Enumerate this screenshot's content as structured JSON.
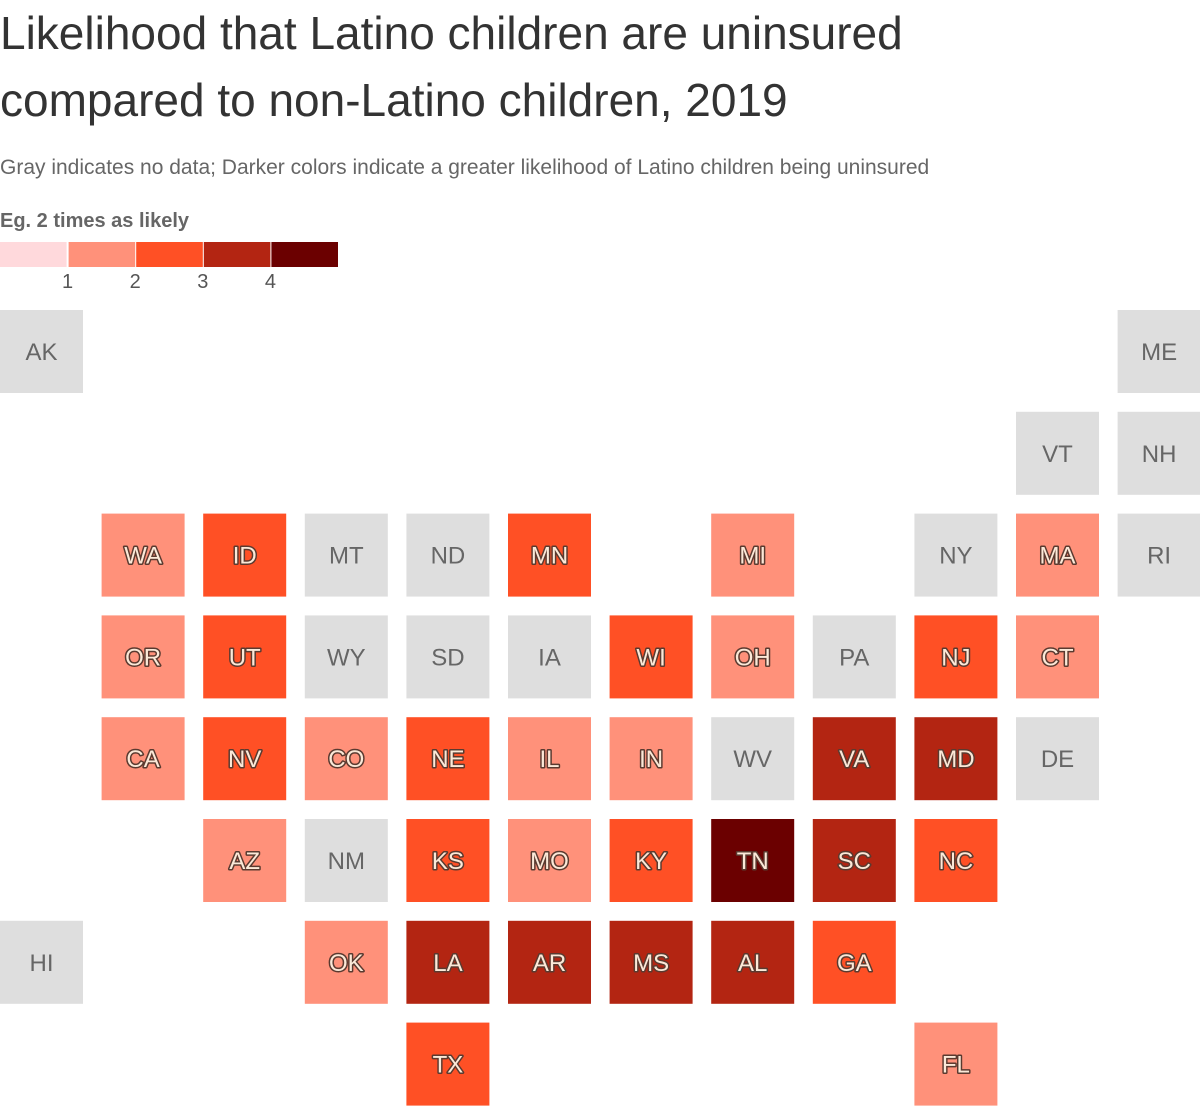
{
  "title": "Likelihood that Latino children are uninsured compared to non-Latino children, 2019",
  "subtitle": "Gray indicates no data; Darker colors indicate a greater likelihood of Latino children being uninsured",
  "legend": {
    "title": "Eg. 2 times as likely",
    "colors": [
      "#ffd9dc",
      "#ff917a",
      "#ff5025",
      "#b32512",
      "#6b0000"
    ],
    "ticks": [
      1,
      2,
      3,
      4
    ]
  },
  "no_data_color": "#dedede",
  "states": [
    {
      "label": "AK",
      "color": "#dedede"
    },
    {
      "label": "ME",
      "color": "#dedede"
    },
    {
      "label": "VT",
      "color": "#dedede"
    },
    {
      "label": "NH",
      "color": "#dedede"
    },
    {
      "label": "WA",
      "color": "#ff917a"
    },
    {
      "label": "ID",
      "color": "#ff5025"
    },
    {
      "label": "MT",
      "color": "#dedede"
    },
    {
      "label": "ND",
      "color": "#dedede"
    },
    {
      "label": "MN",
      "color": "#ff5025"
    },
    {
      "label": "MI",
      "color": "#ff917a"
    },
    {
      "label": "NY",
      "color": "#dedede"
    },
    {
      "label": "MA",
      "color": "#ff917a"
    },
    {
      "label": "RI",
      "color": "#dedede"
    },
    {
      "label": "OR",
      "color": "#ff917a"
    },
    {
      "label": "UT",
      "color": "#ff5025"
    },
    {
      "label": "WY",
      "color": "#dedede"
    },
    {
      "label": "SD",
      "color": "#dedede"
    },
    {
      "label": "IA",
      "color": "#dedede"
    },
    {
      "label": "WI",
      "color": "#ff5025"
    },
    {
      "label": "OH",
      "color": "#ff917a"
    },
    {
      "label": "PA",
      "color": "#dedede"
    },
    {
      "label": "NJ",
      "color": "#ff5025"
    },
    {
      "label": "CT",
      "color": "#ff917a"
    },
    {
      "label": "CA",
      "color": "#ff917a"
    },
    {
      "label": "NV",
      "color": "#ff5025"
    },
    {
      "label": "CO",
      "color": "#ff917a"
    },
    {
      "label": "NE",
      "color": "#ff5025"
    },
    {
      "label": "IL",
      "color": "#ff917a"
    },
    {
      "label": "IN",
      "color": "#ff917a"
    },
    {
      "label": "WV",
      "color": "#dedede"
    },
    {
      "label": "VA",
      "color": "#b32512"
    },
    {
      "label": "MD",
      "color": "#b32512"
    },
    {
      "label": "DE",
      "color": "#dedede"
    },
    {
      "label": "AZ",
      "color": "#ff917a"
    },
    {
      "label": "NM",
      "color": "#dedede"
    },
    {
      "label": "KS",
      "color": "#ff5025"
    },
    {
      "label": "MO",
      "color": "#ff917a"
    },
    {
      "label": "KY",
      "color": "#ff5025"
    },
    {
      "label": "TN",
      "color": "#6b0000"
    },
    {
      "label": "SC",
      "color": "#b32512"
    },
    {
      "label": "NC",
      "color": "#ff5025"
    },
    {
      "label": "HI",
      "color": "#dedede"
    },
    {
      "label": "OK",
      "color": "#ff917a"
    },
    {
      "label": "LA",
      "color": "#b32512"
    },
    {
      "label": "AR",
      "color": "#b32512"
    },
    {
      "label": "MS",
      "color": "#b32512"
    },
    {
      "label": "AL",
      "color": "#b32512"
    },
    {
      "label": "GA",
      "color": "#ff5025"
    },
    {
      "label": "TX",
      "color": "#ff5025"
    },
    {
      "label": "FL",
      "color": "#ff917a"
    }
  ]
}
